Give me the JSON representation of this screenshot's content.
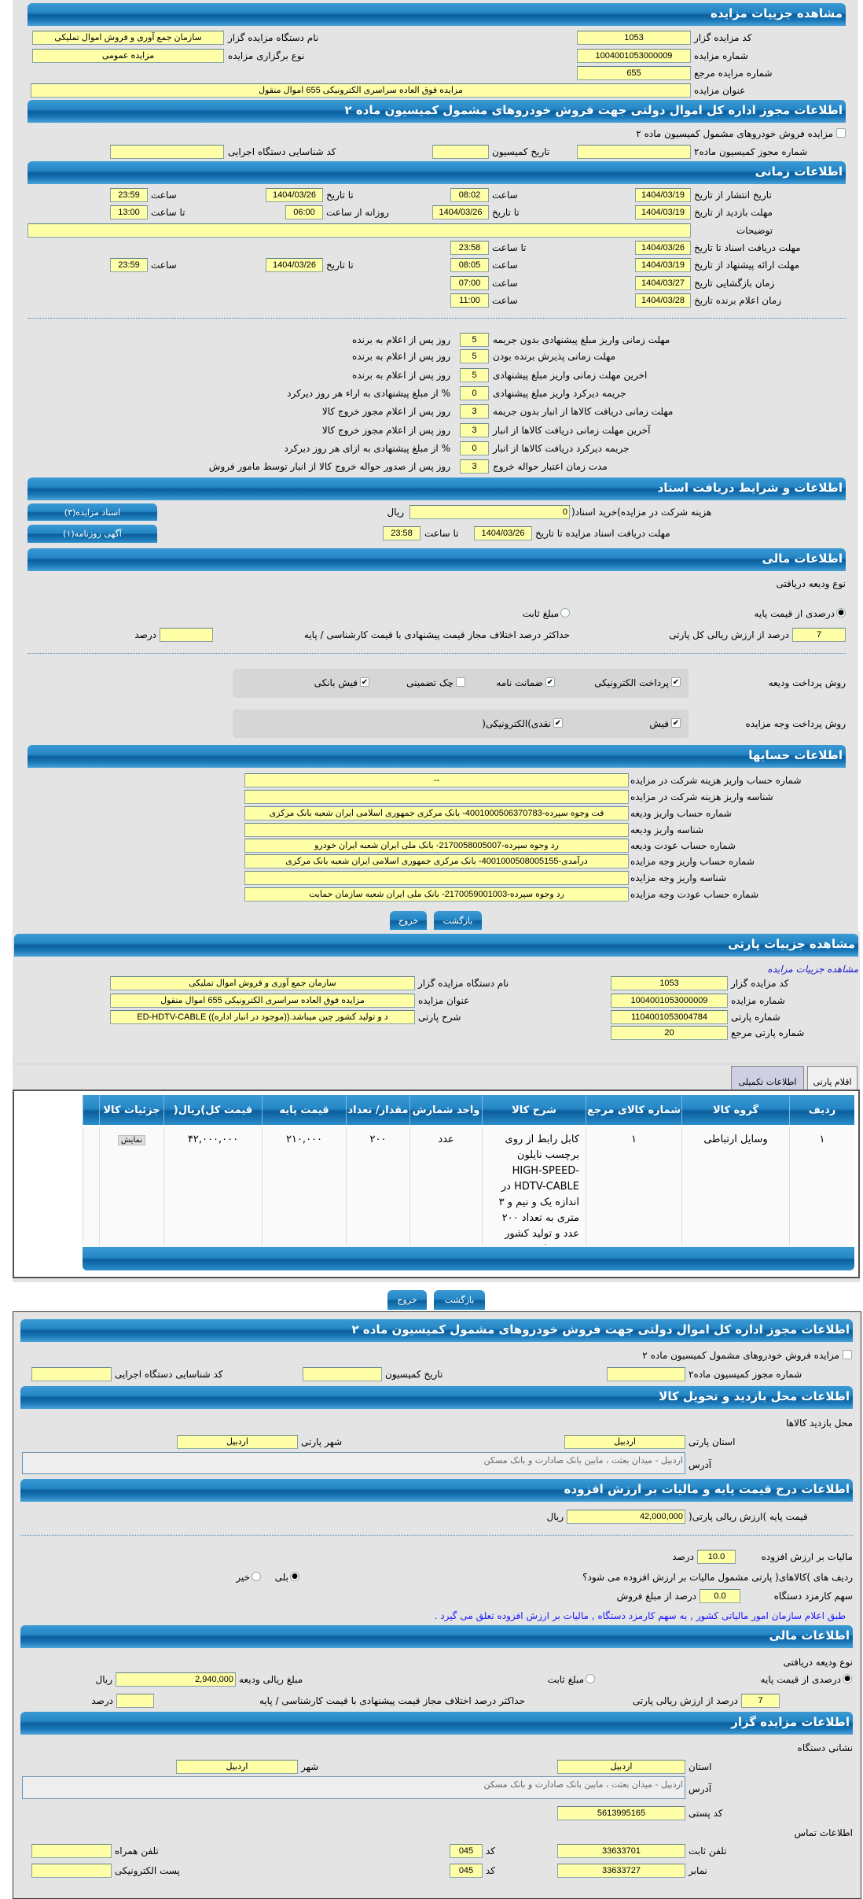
{
  "auction": {
    "title": "مشاهده جزییات مزایده",
    "code_label": "کد مزایده گزار",
    "code": "1053",
    "org_label": "نام دستگاه مزایده گزار",
    "org": "سازمان جمع آوری و فروش اموال تملیکی",
    "number_label": "شماره مزایده",
    "number": "1004001053000009",
    "type_label": "نوع برگزاری مزایده",
    "type": "مزایده عمومی",
    "ref_label": "شماره مزایده مرجع",
    "ref": "655",
    "title_label": "عنوان مزایده",
    "auction_title": "مزایده فوق العاده سراسری الکترونیکی 655 اموال منقول"
  },
  "commission": {
    "title": "اطلاعات مجوز اداره کل اموال دولتی جهت فروش خودروهای مشمول کمیسیون ماده ۲",
    "checkbox_label": "مزایده فروش خودروهای مشمول کمیسیون ماده ۲",
    "checked": false,
    "permit_label": "شماره مجوز کمیسیون ماده۲",
    "permit": "",
    "date_label": "تاریخ کمیسیون",
    "date": "",
    "exec_label": "کد شناسایی دستگاه اجرایی",
    "exec": ""
  },
  "timing": {
    "title": "اطلاعات زمانی",
    "publish": {
      "label": "تاریخ انتشار  از تاریخ",
      "from_date": "1404/03/19",
      "time_label": "ساعت",
      "from_time": "08:02",
      "to_label": "تا تاریخ",
      "to_date": "1404/03/26",
      "to_time_label": "ساعت",
      "to_time": "23:59"
    },
    "visit": {
      "label": "مهلت بازدید  از تاریخ",
      "from_date": "1404/03/19",
      "to_label": "تا تاریخ",
      "to_date": "1404/03/26",
      "daily_label": "روزانه از ساعت",
      "daily_from": "06:00",
      "daily_to_label": "تا ساعت",
      "daily_to": "13:00"
    },
    "notes_label": "توضیحات",
    "notes": "",
    "docs": {
      "label": "مهلت دریافت اسناد  تا تاریخ",
      "date": "1404/03/26",
      "time_label": "تا ساعت",
      "time": "23:58"
    },
    "offer": {
      "label": "مهلت ارائه پیشنهاد  از تاریخ",
      "from_date": "1404/03/19",
      "time_label": "ساعت",
      "from_time": "08:05",
      "to_label": "تا تاریخ",
      "to_date": "1404/03/26",
      "to_time_label": "ساعت",
      "to_time": "23:59"
    },
    "opening": {
      "label": "زمان بازگشایی    تاریخ",
      "date": "1404/03/27",
      "time_label": "ساعت",
      "time": "07:00"
    },
    "winner": {
      "label": "زمان اعلام برنده   تاریخ",
      "date": "1404/03/28",
      "time_label": "ساعت",
      "time": "11:00"
    },
    "deadlines": [
      {
        "label": "مهلت زمانی واریز مبلغ پیشنهادی بدون جریمه",
        "value": "5",
        "suffix": "روز پس از اعلام به برنده"
      },
      {
        "label": "مهلت زمانی پذیرش برنده بودن",
        "value": "5",
        "suffix": "روز پس از اعلام به برنده"
      },
      {
        "label": "اخرین مهلت زمانی واریز مبلغ پیشنهادی",
        "value": "5",
        "suffix": "روز پس از اعلام به برنده"
      },
      {
        "label": "جریمه دیرکرد واریز مبلغ پیشنهادی",
        "value": "0",
        "suffix": "% از مبلغ پیشنهادی به اراء هر روز دیرکرد"
      },
      {
        "label": "مهلت زمانی دریافت کالاها از انبار بدون جریمه",
        "value": "3",
        "suffix": "روز پس از اعلام مجوز خروج کالا"
      },
      {
        "label": "آخرین مهلت زمانی دریافت کالاها از انبار",
        "value": "3",
        "suffix": "روز پس از اعلام مجوز خروج کالا"
      },
      {
        "label": "جریمه دیرکرد دریافت کالاها از انبار",
        "value": "0",
        "suffix": "% از مبلغ پیشنهادی به ازای هر روز دیرکرد"
      },
      {
        "label": "مدت زمان اعتبار حواله خروج",
        "value": "3",
        "suffix": "روز پس از صدور حواله خروج کالا از انبار توسط مامور فروش"
      }
    ]
  },
  "documents": {
    "title": "اطلاعات و شرایط دریافت اسناد",
    "fee_label": "هزینه شرکت در مزایده)خرید اسناد(",
    "fee": "0",
    "fee_unit": "ریال",
    "deadline_label": "مهلت دریافت اسناد مزایده تا تاریخ",
    "deadline_date": "1404/03/26",
    "deadline_time_label": "تا ساعت",
    "deadline_time": "23:58",
    "buttons": [
      "اسناد مزایده(۳)",
      "آگهی روزنامه(۱)"
    ]
  },
  "financial": {
    "title": "اطلاعات مالی",
    "deposit_type_label": "نوع ودیعه دریافتی",
    "opt_percent": "درصدی از قیمت پایه",
    "opt_fixed": "مبلغ ثابت",
    "selected": "percent",
    "percent": "7",
    "percent_label": "درصد از ارزش ریالی کل پارتی",
    "max_diff_label": "حداکثر درصد اختلاف مجاز قیمت پیشنهادی با قیمت کارشناسی / پایه",
    "max_diff": "",
    "max_diff_unit": "درصد",
    "deposit_methods_label": "روش پرداخت ودیعه",
    "deposit_methods": [
      {
        "label": "پرداخت الکترونیکی",
        "checked": true
      },
      {
        "label": "ضمانت نامه",
        "checked": true
      },
      {
        "label": "چک تضمینی",
        "checked": false
      },
      {
        "label": "فیش بانکی",
        "checked": true
      }
    ],
    "payment_methods_label": "روش پرداخت وجه مزایده",
    "payment_methods": [
      {
        "label": "فیش",
        "checked": true
      },
      {
        "label": "نقدی)الکترونیکی(",
        "checked": true
      }
    ]
  },
  "accounts": {
    "title": "اطلاعات حسابها",
    "rows": [
      {
        "label": "شماره حساب واریز هزینه شرکت در مزایده",
        "value": "--"
      },
      {
        "label": "شناسه واریز هزینه شرکت در مزایده",
        "value": ""
      },
      {
        "label": "شماره حساب واریز ودیعه",
        "value": "فت وجوه سپرده-4001000506370783- بانک مرکزی جمهوری اسلامی ایران شعبه بانک مرکزی"
      },
      {
        "label": "شناسه واریز ودیعه",
        "value": ""
      },
      {
        "label": "شماره حساب عودت ودیعه",
        "value": "رد وجوه سپرده-2170058005007- بانک ملی ایران شعبه ایران خودرو"
      },
      {
        "label": "شماره حساب واریز وجه مزایده",
        "value": "درآمدی-4001000508005155- بانک مرکزی جمهوری اسلامی ایران شعبه بانک مرکزی"
      },
      {
        "label": "شناسه واریز وجه مزایده",
        "value": ""
      },
      {
        "label": "شماره حساب عودت وجه مزایده",
        "value": "رد وجوه سپرده-2170059001003- بانک ملی ایران شعبه سازمان حمایت"
      }
    ]
  },
  "actions": {
    "back": "بازگشت",
    "exit": "خروج"
  },
  "lot": {
    "title": "مشاهده جزییات پارتی",
    "auction_link": "مشاهده جزییات مزایده",
    "code_label": "کد مزایده گزار",
    "code": "1053",
    "org_label": "نام دستگاه مزایده گزار",
    "org": "سازمان جمع آوری و فروش اموال تملیکی",
    "number_label": "شماره مزایده",
    "number": "1004001053000009",
    "title_label": "عنوان مزایده",
    "auction_title": "مزایده فوق العاده سراسری الکترونیکی 655 اموال منقول",
    "lot_number_label": "شماره پارتی",
    "lot_number": "1104001053004784",
    "desc_label": "شرح پارتی",
    "desc": "د و تولید کشور چین میباشد.((موجود در انبار اداره)) ED-HDTV-CABLE",
    "lot_ref_label": "شماره پارتی مرجع",
    "lot_ref": "20",
    "tabs": [
      {
        "label": "اقلام پارتی",
        "active": true
      },
      {
        "label": "اطلاعات تکمیلی",
        "active": false
      }
    ],
    "table": {
      "columns": [
        "ردیف",
        "گروه کالا",
        "شماره کالای مرجع",
        "شرح کالا",
        "واحد شمارش",
        "مقدار/ تعداد",
        "قیمت پایه",
        "قیمت کل)ریال(",
        "جزئیات کالا",
        ""
      ],
      "rows": [
        [
          "۱",
          "وسایل ارتباطی",
          "۱",
          "کابل رابط از روی برچسب نایلون HIGH-SPEED-HDTV-CABLE در اندازه یک و نیم و ۳ متری به تعداد ۲۰۰ عدد و تولید کشور چین میباشد.",
          "عدد",
          "۲۰۰",
          "۲۱۰,۰۰۰",
          "۴۲,۰۰۰,۰۰۰",
          "نمایش",
          ""
        ]
      ]
    }
  },
  "lot_info": {
    "commission": {
      "title": "اطلاعات مجوز اداره کل اموال دولتی جهت فروش خودروهای مشمول کمیسیون ماده ۲",
      "checkbox_label": "مزایده فروش خودروهای مشمول کمیسیون ماده ۲",
      "checked": false,
      "permit_label": "شماره مجوز کمیسیون ماده۲",
      "permit": "",
      "date_label": "تاریخ کمیسیون",
      "date": "",
      "exec_label": "کد شناسایی دستگاه اجرایی",
      "exec": ""
    },
    "visit": {
      "title": "اطلاعات محل بازدید و تحویل کالا",
      "location_label": "محل بازدید کالاها",
      "province_label": "استان پارتی",
      "province": "اردبیل",
      "city_label": "شهر پارتی",
      "city": "اردبیل",
      "address_label": "آدرس",
      "address": "اردبیل - میدان بعثت ، مابین بانک صادارت و بانک مسکن"
    },
    "vat": {
      "title": "اطلاعات درج قیمت پایه و مالیات بر ارزش افزوده",
      "base_label": "قیمت پایه )ارزش ریالی پارتی(",
      "base": "42,000,000",
      "unit": "ریال",
      "vat_label": "مالیات بر ارزش افزوده",
      "vat": "10.0",
      "vat_unit": "درصد",
      "taxable_label": "ردیف های )کالاهای( پارتی مشمول مالیات بر ارزش افزوده می شود؟",
      "yes": "بلی",
      "no": "خیر",
      "selected": "yes",
      "fee_label": "سهم کارمزد دستگاه",
      "fee": "0.0",
      "fee_unit": "درصد از مبلغ فروش",
      "note": "طبق اعلام سازمان امور مالیاتی کشور , به سهم کارمزد دستگاه , مالیات بر ارزش افزوده تعلق می گیرد ."
    },
    "financial": {
      "title": "اطلاعات مالی",
      "deposit_type_label": "نوع ودیعه دریافتی",
      "opt_percent": "درصدی از قیمت پایه",
      "opt_fixed": "مبلغ ثابت",
      "selected": "percent",
      "deposit_amount_label": "مبلغ ریالی ودیعه",
      "deposit_amount": "2,940,000",
      "unit": "ریال",
      "percent": "7",
      "percent_label": "درصد از ارزش ریالی پارتی",
      "max_diff_label": "حداکثر درصد اختلاف مجاز قیمت پیشنهادی با قیمت کارشناسی / پایه",
      "max_diff": "",
      "max_diff_unit": "درصد"
    },
    "auctioneer": {
      "title": "اطلاعات مزایده گزار",
      "address_title": "نشانی دستگاه",
      "province_label": "استان",
      "province": "اردبیل",
      "city_label": "شهر",
      "city": "اردبیل",
      "address_label": "آدرس",
      "address": "اردبیل - میدان بعثت ، مابین بانک صادارت و بانک مسکن",
      "postal_label": "کد پستی",
      "postal": "5613995165",
      "contact_title": "اطلاعات تماس",
      "phone_label": "تلفن ثابت",
      "phone": "33633701",
      "code_label": "کد",
      "phone_code": "045",
      "mobile_label": "تلفن همراه",
      "mobile": "",
      "fax_label": "نمابر",
      "fax": "33633727",
      "fax_code": "045",
      "email_label": "پست الکترونیکی",
      "email": ""
    }
  }
}
